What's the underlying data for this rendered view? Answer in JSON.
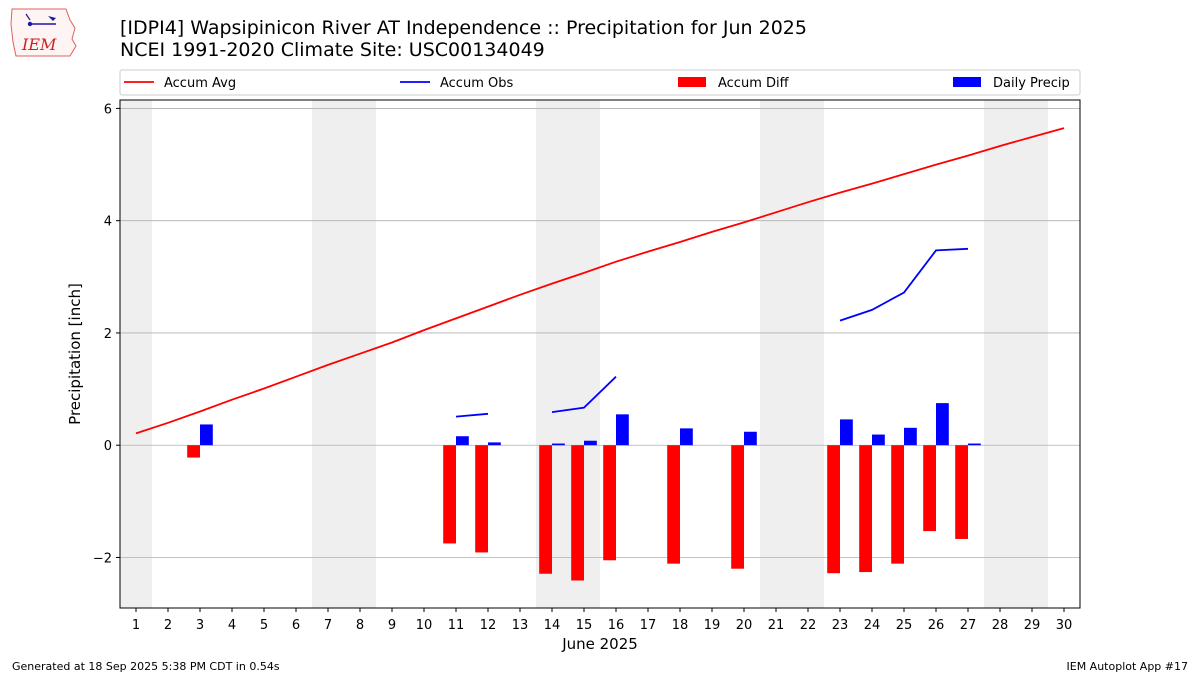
{
  "header": {
    "title_line1": "[IDPI4] Wapsipinicon River  AT Independence :: Precipitation for Jun 2025",
    "title_line2": "NCEI 1991-2020 Climate Site: USC00134049",
    "logo_text": "IEM",
    "logo_icon": "iowa-weather-logo-icon"
  },
  "footer": {
    "left": "Generated at 18 Sep 2025 5:38 PM CDT in 0.54s",
    "right": "IEM Autoplot App #17"
  },
  "chart_data": {
    "type": "bar",
    "xlabel": "June 2025",
    "ylabel": "Precipitation [inch]",
    "xlim": [
      0.5,
      30.5
    ],
    "ylim": [
      -2.9,
      6.15
    ],
    "yticks": [
      -2,
      0,
      2,
      4,
      6
    ],
    "ytick_labels": [
      "−2",
      "0",
      "2",
      "4",
      "6"
    ],
    "x": [
      1,
      2,
      3,
      4,
      5,
      6,
      7,
      8,
      9,
      10,
      11,
      12,
      13,
      14,
      15,
      16,
      17,
      18,
      19,
      20,
      21,
      22,
      23,
      24,
      25,
      26,
      27,
      28,
      29,
      30
    ],
    "xtick_labels": [
      "1",
      "2",
      "3",
      "4",
      "5",
      "6",
      "7",
      "8",
      "9",
      "10",
      "11",
      "12",
      "13",
      "14",
      "15",
      "16",
      "17",
      "18",
      "19",
      "20",
      "21",
      "22",
      "23",
      "24",
      "25",
      "26",
      "27",
      "28",
      "29",
      "30"
    ],
    "grid": "horizontal",
    "legend_position": "top",
    "weekend_shading": [
      [
        0.5,
        1.5
      ],
      [
        6.5,
        8.5
      ],
      [
        13.5,
        15.5
      ],
      [
        20.5,
        22.5
      ],
      [
        27.5,
        29.5
      ]
    ],
    "colors": {
      "avg": "#ff0000",
      "obs": "#0000ff",
      "diff": "#ff0000",
      "daily": "#0000ff",
      "shade": "#efefef",
      "grid": "#b0b0b0"
    },
    "series": [
      {
        "name": "Accum Avg",
        "kind": "line",
        "values": [
          0.21,
          0.4,
          0.6,
          0.81,
          1.01,
          1.22,
          1.43,
          1.63,
          1.83,
          2.05,
          2.26,
          2.47,
          2.68,
          2.88,
          3.07,
          3.27,
          3.45,
          3.62,
          3.8,
          3.97,
          4.15,
          4.33,
          4.5,
          4.66,
          4.83,
          5.0,
          5.16,
          5.33,
          5.49,
          5.65
        ]
      },
      {
        "name": "Accum Obs",
        "kind": "line",
        "values": [
          null,
          null,
          null,
          null,
          null,
          null,
          null,
          null,
          null,
          null,
          0.51,
          0.56,
          null,
          0.59,
          0.67,
          1.22,
          null,
          null,
          null,
          null,
          null,
          null,
          2.22,
          2.41,
          2.72,
          3.47,
          3.5,
          null,
          null,
          null
        ]
      },
      {
        "name": "Accum Diff",
        "kind": "bar",
        "values": [
          null,
          null,
          -0.22,
          null,
          null,
          null,
          null,
          null,
          null,
          null,
          -1.75,
          -1.91,
          null,
          -2.29,
          -2.41,
          -2.05,
          null,
          -2.11,
          null,
          -2.2,
          null,
          null,
          -2.28,
          -2.26,
          -2.11,
          -1.53,
          -1.67,
          null,
          null,
          null
        ]
      },
      {
        "name": "Daily Precip",
        "kind": "bar",
        "values": [
          null,
          null,
          0.37,
          null,
          null,
          null,
          null,
          null,
          null,
          null,
          0.16,
          0.05,
          null,
          0.03,
          0.08,
          0.55,
          null,
          0.3,
          null,
          0.24,
          null,
          null,
          0.46,
          0.19,
          0.31,
          0.75,
          0.03,
          null,
          null,
          null
        ]
      }
    ]
  }
}
